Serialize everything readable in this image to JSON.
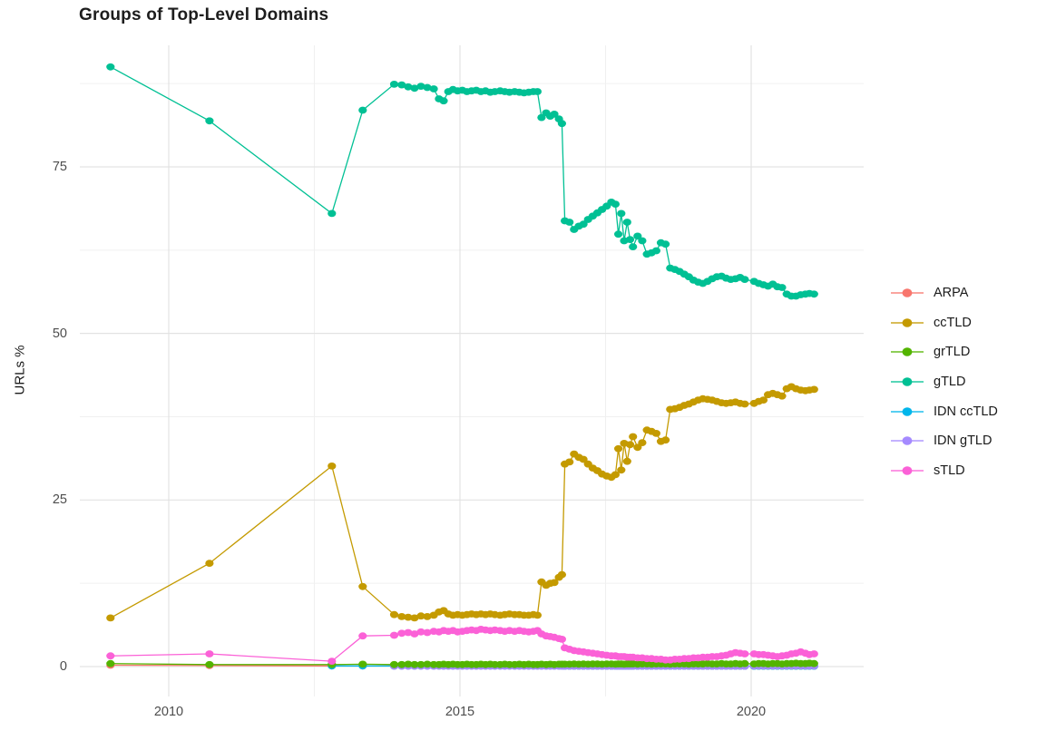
{
  "title": "Groups of Top-Level Domains",
  "y_axis": {
    "label": "URLs %",
    "ticks": [
      {
        "label": "0",
        "value": 0
      },
      {
        "label": "25",
        "value": 25
      },
      {
        "label": "50",
        "value": 50
      },
      {
        "label": "75",
        "value": 75
      }
    ]
  },
  "x_axis": {
    "ticks": [
      {
        "label": "2010",
        "value": 2010
      },
      {
        "label": "2015",
        "value": 2015
      },
      {
        "label": "2020",
        "value": 2020
      }
    ]
  },
  "colors": {
    "grid_major": "#e3e3e3",
    "grid_minor": "#f0f0f0",
    "tick_text": "#4d4d4d"
  },
  "chart_data": {
    "type": "line",
    "title": "Groups of Top-Level Domains",
    "xlabel": "",
    "ylabel": "URLs %",
    "ylim": [
      0,
      92
    ],
    "xlim": [
      2008.5,
      2021.6
    ],
    "grid": {
      "major_y": [
        0,
        25,
        50,
        75
      ],
      "minor_y": [
        12.5,
        37.5,
        62.5,
        87.5
      ],
      "major_x": [
        2010,
        2015,
        2020
      ],
      "minor_x": [
        2012.5,
        2017.5
      ]
    },
    "legend_position": "right",
    "x": [
      2009.0,
      2010.7,
      2012.8,
      2013.33,
      2013.87,
      2014.0,
      2014.11,
      2014.22,
      2014.33,
      2014.44,
      2014.55,
      2014.64,
      2014.72,
      2014.8,
      2014.88,
      2014.96,
      2015.04,
      2015.12,
      2015.2,
      2015.28,
      2015.36,
      2015.44,
      2015.52,
      2015.6,
      2015.69,
      2015.77,
      2015.85,
      2015.94,
      2016.02,
      2016.1,
      2016.18,
      2016.26,
      2016.33,
      2016.4,
      2016.48,
      2016.55,
      2016.62,
      2016.7,
      2016.75,
      2016.8,
      2016.88,
      2016.96,
      2017.04,
      2017.12,
      2017.2,
      2017.28,
      2017.36,
      2017.44,
      2017.52,
      2017.6,
      2017.67,
      2017.72,
      2017.77,
      2017.82,
      2017.87,
      2017.92,
      2017.97,
      2018.05,
      2018.13,
      2018.21,
      2018.29,
      2018.37,
      2018.45,
      2018.53,
      2018.61,
      2018.69,
      2018.77,
      2018.85,
      2018.93,
      2019.01,
      2019.09,
      2019.17,
      2019.25,
      2019.33,
      2019.41,
      2019.49,
      2019.57,
      2019.65,
      2019.73,
      2019.81,
      2019.89,
      2020.05,
      2020.13,
      2020.21,
      2020.29,
      2020.37,
      2020.45,
      2020.53,
      2020.61,
      2020.69,
      2020.77,
      2020.85,
      2020.93,
      2021.0,
      2021.08
    ],
    "series": [
      {
        "name": "ARPA",
        "color": "#F8766D",
        "values": [
          0.2,
          0.15,
          0.1,
          0.1,
          0.1,
          0.1,
          0.1,
          0.1,
          0.1,
          0.1,
          0.1,
          0.1,
          0.1,
          0.1,
          0.1,
          0.1,
          0.1,
          0.1,
          0.1,
          0.1,
          0.1,
          0.1,
          0.1,
          0.1,
          0.1,
          0.1,
          0.1,
          0.1,
          0.1,
          0.1,
          0.1,
          0.1,
          0.1,
          0.1,
          0.1,
          0.1,
          0.1,
          0.1,
          0.1,
          0.05,
          0.05,
          0.05,
          0.05,
          0.05,
          0.05,
          0.05,
          0.05,
          0.05,
          0.05,
          0.05,
          0.05,
          0.05,
          0.05,
          0.05,
          0.05,
          0.05,
          0.05,
          0.05,
          0.05,
          0.05,
          0.05,
          0.05,
          0.05,
          0.05,
          0.05,
          0.05,
          0.05,
          0.05,
          0.05,
          0.05,
          0.05,
          0.05,
          0.05,
          0.05,
          0.05,
          0.05,
          0.05,
          0.05,
          0.05,
          0.05,
          0.05,
          0.05,
          0.05,
          0.05,
          0.05,
          0.05,
          0.05,
          0.05,
          0.05,
          0.05,
          0.05,
          0.05,
          0.05,
          0.05,
          0.05
        ]
      },
      {
        "name": "ccTLD",
        "color": "#C49A00",
        "values": [
          7.3,
          15.5,
          30.1,
          12.0,
          7.8,
          7.5,
          7.4,
          7.3,
          7.6,
          7.5,
          7.7,
          8.2,
          8.4,
          7.9,
          7.7,
          7.8,
          7.7,
          7.8,
          7.9,
          7.8,
          7.9,
          7.8,
          7.9,
          7.8,
          7.7,
          7.8,
          7.9,
          7.8,
          7.8,
          7.7,
          7.7,
          7.8,
          7.7,
          12.7,
          12.2,
          12.5,
          12.6,
          13.4,
          13.8,
          30.4,
          30.7,
          31.9,
          31.4,
          31.1,
          30.4,
          29.8,
          29.4,
          28.9,
          28.6,
          28.4,
          28.8,
          32.7,
          29.5,
          33.5,
          30.8,
          33.3,
          34.5,
          32.9,
          33.6,
          35.5,
          35.3,
          35.0,
          33.8,
          34.0,
          38.6,
          38.7,
          38.9,
          39.2,
          39.4,
          39.7,
          40.0,
          40.2,
          40.1,
          40.0,
          39.8,
          39.6,
          39.5,
          39.6,
          39.7,
          39.5,
          39.4,
          39.5,
          39.8,
          40.0,
          40.8,
          41.0,
          40.8,
          40.6,
          41.7,
          42.0,
          41.7,
          41.5,
          41.4,
          41.5,
          41.6
        ]
      },
      {
        "name": "grTLD",
        "color": "#53B400",
        "values": [
          0.45,
          0.3,
          0.3,
          0.35,
          0.3,
          0.3,
          0.35,
          0.3,
          0.3,
          0.35,
          0.3,
          0.3,
          0.35,
          0.3,
          0.35,
          0.3,
          0.3,
          0.35,
          0.3,
          0.3,
          0.35,
          0.3,
          0.35,
          0.3,
          0.3,
          0.35,
          0.3,
          0.3,
          0.35,
          0.3,
          0.35,
          0.3,
          0.3,
          0.35,
          0.3,
          0.35,
          0.3,
          0.35,
          0.35,
          0.35,
          0.35,
          0.4,
          0.35,
          0.4,
          0.35,
          0.4,
          0.4,
          0.35,
          0.4,
          0.4,
          0.35,
          0.4,
          0.4,
          0.35,
          0.4,
          0.4,
          0.4,
          0.35,
          0.4,
          0.4,
          0.35,
          0.4,
          0.4,
          0.4,
          0.35,
          0.4,
          0.4,
          0.4,
          0.35,
          0.4,
          0.4,
          0.4,
          0.45,
          0.4,
          0.4,
          0.45,
          0.4,
          0.4,
          0.45,
          0.4,
          0.45,
          0.4,
          0.45,
          0.45,
          0.4,
          0.45,
          0.45,
          0.4,
          0.45,
          0.45,
          0.5,
          0.45,
          0.45,
          0.5,
          0.45
        ]
      },
      {
        "name": "gTLD",
        "color": "#00C094",
        "values": [
          90.0,
          81.9,
          68.0,
          83.5,
          87.4,
          87.3,
          87.0,
          86.8,
          87.1,
          86.9,
          86.7,
          85.2,
          84.9,
          86.3,
          86.6,
          86.4,
          86.5,
          86.3,
          86.4,
          86.5,
          86.3,
          86.4,
          86.2,
          86.3,
          86.4,
          86.3,
          86.2,
          86.3,
          86.2,
          86.1,
          86.2,
          86.3,
          86.3,
          82.4,
          83.1,
          82.6,
          82.9,
          82.2,
          81.5,
          66.9,
          66.7,
          65.6,
          66.1,
          66.4,
          67.1,
          67.6,
          68.1,
          68.6,
          69.1,
          69.7,
          69.4,
          64.9,
          68.0,
          63.9,
          66.7,
          64.1,
          63.0,
          64.6,
          63.9,
          61.9,
          62.1,
          62.4,
          63.6,
          63.4,
          59.8,
          59.6,
          59.3,
          58.9,
          58.5,
          58.0,
          57.7,
          57.5,
          57.8,
          58.2,
          58.5,
          58.6,
          58.3,
          58.1,
          58.2,
          58.4,
          58.1,
          57.8,
          57.5,
          57.3,
          57.1,
          57.4,
          57.0,
          56.9,
          55.9,
          55.6,
          55.6,
          55.8,
          55.9,
          56.0,
          55.9
        ]
      },
      {
        "name": "IDN ccTLD",
        "color": "#00B6EB",
        "values": [
          null,
          null,
          0.1,
          0.1,
          0.08,
          0.08,
          0.08,
          0.08,
          0.08,
          0.08,
          0.08,
          0.08,
          0.08,
          0.08,
          0.08,
          0.08,
          0.08,
          0.08,
          0.08,
          0.08,
          0.08,
          0.08,
          0.08,
          0.08,
          0.08,
          0.08,
          0.08,
          0.08,
          0.08,
          0.08,
          0.08,
          0.08,
          0.08,
          0.08,
          0.08,
          0.08,
          0.08,
          0.08,
          0.08,
          0.05,
          0.05,
          0.05,
          0.05,
          0.05,
          0.05,
          0.05,
          0.05,
          0.05,
          0.05,
          0.05,
          0.05,
          0.05,
          0.05,
          0.05,
          0.05,
          0.05,
          0.05,
          0.05,
          0.05,
          0.05,
          0.05,
          0.05,
          0.05,
          0.05,
          0.05,
          0.05,
          0.05,
          0.05,
          0.05,
          0.05,
          0.05,
          0.05,
          0.05,
          0.05,
          0.05,
          0.05,
          0.05,
          0.05,
          0.05,
          0.05,
          0.05,
          0.05,
          0.05,
          0.05,
          0.05,
          0.05,
          0.05,
          0.05,
          0.05,
          0.05,
          0.05,
          0.05,
          0.05,
          0.05,
          0.05
        ]
      },
      {
        "name": "IDN gTLD",
        "color": "#A58AFF",
        "values": [
          null,
          null,
          null,
          null,
          0.05,
          0.05,
          0.05,
          0.05,
          0.05,
          0.05,
          0.05,
          0.05,
          0.05,
          0.05,
          0.05,
          0.05,
          0.05,
          0.05,
          0.05,
          0.05,
          0.05,
          0.05,
          0.05,
          0.05,
          0.05,
          0.05,
          0.05,
          0.05,
          0.05,
          0.05,
          0.05,
          0.05,
          0.05,
          0.05,
          0.05,
          0.05,
          0.05,
          0.05,
          0.05,
          0.05,
          0.05,
          0.05,
          0.05,
          0.05,
          0.05,
          0.05,
          0.05,
          0.05,
          0.05,
          0.05,
          0.05,
          0.05,
          0.05,
          0.05,
          0.05,
          0.05,
          0.05,
          0.05,
          0.05,
          0.05,
          0.05,
          0.05,
          0.05,
          0.05,
          0.05,
          0.05,
          0.05,
          0.05,
          0.05,
          0.05,
          0.05,
          0.05,
          0.05,
          0.05,
          0.05,
          0.05,
          0.05,
          0.05,
          0.05,
          0.05,
          0.05,
          0.1,
          0.1,
          0.1,
          0.1,
          0.1,
          0.1,
          0.1,
          0.1,
          0.1,
          0.1,
          0.1,
          0.1,
          0.1,
          0.1
        ]
      },
      {
        "name": "sTLD",
        "color": "#FB61D7",
        "values": [
          1.6,
          1.9,
          0.8,
          4.6,
          4.7,
          5.0,
          5.1,
          4.9,
          5.2,
          5.1,
          5.3,
          5.2,
          5.4,
          5.3,
          5.4,
          5.2,
          5.3,
          5.4,
          5.5,
          5.4,
          5.6,
          5.5,
          5.4,
          5.5,
          5.4,
          5.3,
          5.4,
          5.3,
          5.4,
          5.3,
          5.2,
          5.3,
          5.4,
          4.9,
          4.6,
          4.5,
          4.4,
          4.2,
          4.1,
          2.8,
          2.6,
          2.4,
          2.3,
          2.2,
          2.1,
          2.0,
          1.9,
          1.8,
          1.7,
          1.6,
          1.6,
          1.5,
          1.5,
          1.5,
          1.4,
          1.4,
          1.4,
          1.3,
          1.3,
          1.2,
          1.2,
          1.1,
          1.1,
          1.0,
          1.0,
          1.1,
          1.1,
          1.2,
          1.2,
          1.3,
          1.3,
          1.4,
          1.4,
          1.5,
          1.5,
          1.6,
          1.7,
          1.9,
          2.1,
          2.0,
          1.9,
          1.9,
          1.8,
          1.8,
          1.7,
          1.6,
          1.5,
          1.6,
          1.7,
          1.9,
          2.0,
          2.2,
          2.0,
          1.8,
          1.9
        ]
      }
    ]
  }
}
